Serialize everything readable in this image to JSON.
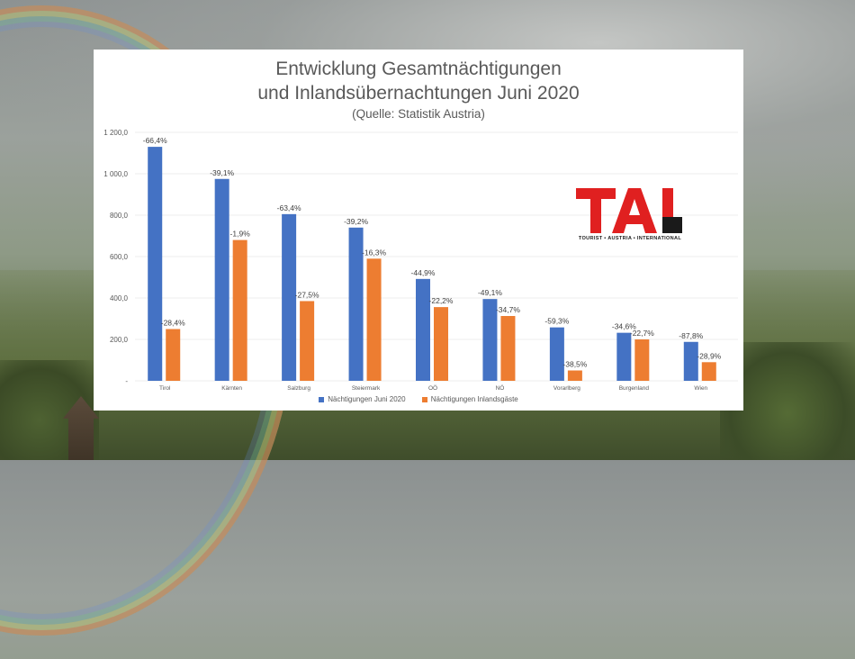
{
  "colors": {
    "series1": "#4472c4",
    "series2": "#ed7d31",
    "logo_red": "#e02020",
    "logo_black": "#1a1a1a"
  },
  "logo": {
    "tagline": "TOURIST • AUSTRIA • INTERNATIONAL"
  },
  "chart_data": {
    "type": "bar",
    "title_line1": "Entwicklung Gesamtnächtigungen",
    "title_line2": "und Inlandsübernachtungen Juni 2020",
    "subtitle": "(Quelle: Statistik Austria)",
    "categories": [
      "Tirol",
      "Kärnten",
      "Salzburg",
      "Steiermark",
      "OÖ",
      "NÖ",
      "Vorarlberg",
      "Burgenland",
      "Wien"
    ],
    "series": [
      {
        "name": "Nächtigungen Juni 2020",
        "values": [
          1130,
          975,
          805,
          740,
          492,
          395,
          258,
          232,
          188
        ],
        "labels": [
          "-66,4%",
          "-39,1%",
          "-63,4%",
          "-39,2%",
          "-44,9%",
          "-49,1%",
          "-59,3%",
          "-34,6%",
          "-87,8%"
        ]
      },
      {
        "name": "Nächtigungen Inlandsgäste",
        "values": [
          250,
          680,
          385,
          590,
          356,
          313,
          50,
          200,
          90
        ],
        "labels": [
          "-28,4%",
          "-1,9%",
          "-27,5%",
          "-16,3%",
          "-22,2%",
          "-34,7%",
          "-38,5%",
          "-22,7%",
          "-28,9%"
        ]
      }
    ],
    "ylim": [
      0,
      1200
    ],
    "yticks": [
      0,
      200,
      400,
      600,
      800,
      1000,
      1200
    ],
    "ytick_labels": [
      "-",
      "200,0",
      "400,0",
      "600,0",
      "800,0",
      "1 000,0",
      "1 200,0"
    ],
    "grid": true,
    "legend": "bottom"
  }
}
